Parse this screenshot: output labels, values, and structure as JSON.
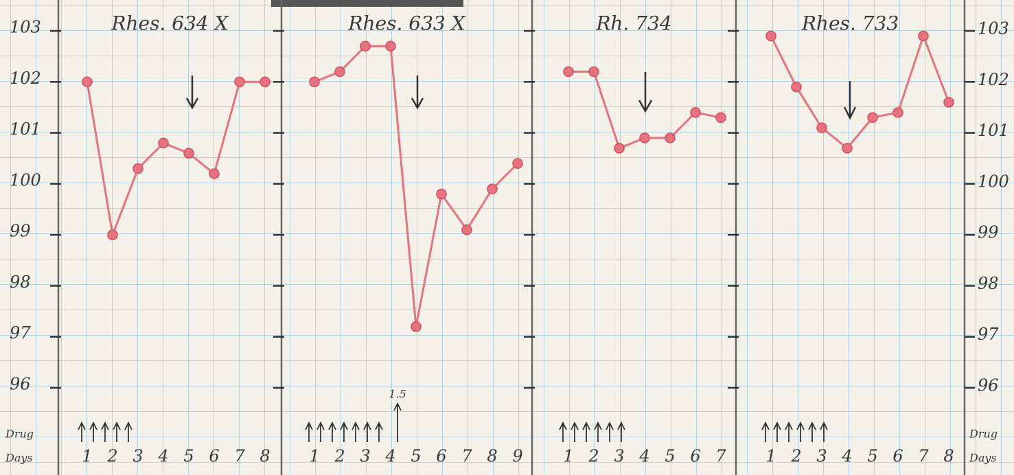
{
  "chart_data": [
    {
      "type": "line",
      "title": "Rhes. 634 X",
      "categories": [
        1,
        2,
        3,
        4,
        5,
        6,
        7,
        8
      ],
      "values": [
        102.0,
        99.0,
        100.3,
        100.8,
        100.6,
        100.2,
        102.0,
        102.0
      ],
      "color": "#e8737f",
      "ylim": [
        96,
        103
      ],
      "yticks": [
        96,
        97,
        98,
        99,
        100,
        101,
        102,
        103
      ],
      "drug_doses": 5
    },
    {
      "type": "line",
      "title": "Rhes. 633 X",
      "categories": [
        1,
        2,
        3,
        4,
        5,
        6,
        7,
        8,
        9
      ],
      "values": [
        102.0,
        102.2,
        102.7,
        102.7,
        97.2,
        99.8,
        99.1,
        99.9,
        100.4
      ],
      "color": "#e8737f",
      "ylim": [
        96,
        103
      ],
      "drug_doses": 7,
      "annotation": "1.5"
    },
    {
      "type": "line",
      "title": "Rh. 734",
      "categories": [
        1,
        2,
        3,
        4,
        5,
        6,
        7
      ],
      "values": [
        102.2,
        102.2,
        100.7,
        100.9,
        100.9,
        101.4,
        101.3
      ],
      "color": "#e8737f",
      "ylim": [
        96,
        103
      ],
      "drug_doses": 6
    },
    {
      "type": "line",
      "title": "Rhes. 733",
      "categories": [
        1,
        2,
        3,
        4,
        5,
        6,
        7,
        8
      ],
      "values": [
        102.9,
        101.9,
        101.1,
        100.7,
        101.3,
        101.4,
        102.9,
        101.6
      ],
      "color": "#e8737f",
      "ylim": [
        96,
        103
      ],
      "y2lim": [
        96,
        103
      ],
      "y2ticks": [
        96,
        97,
        98,
        99,
        100,
        101,
        102,
        103
      ],
      "drug_doses": 6
    }
  ],
  "row_labels": {
    "drug": "Drug",
    "days": "Days"
  }
}
